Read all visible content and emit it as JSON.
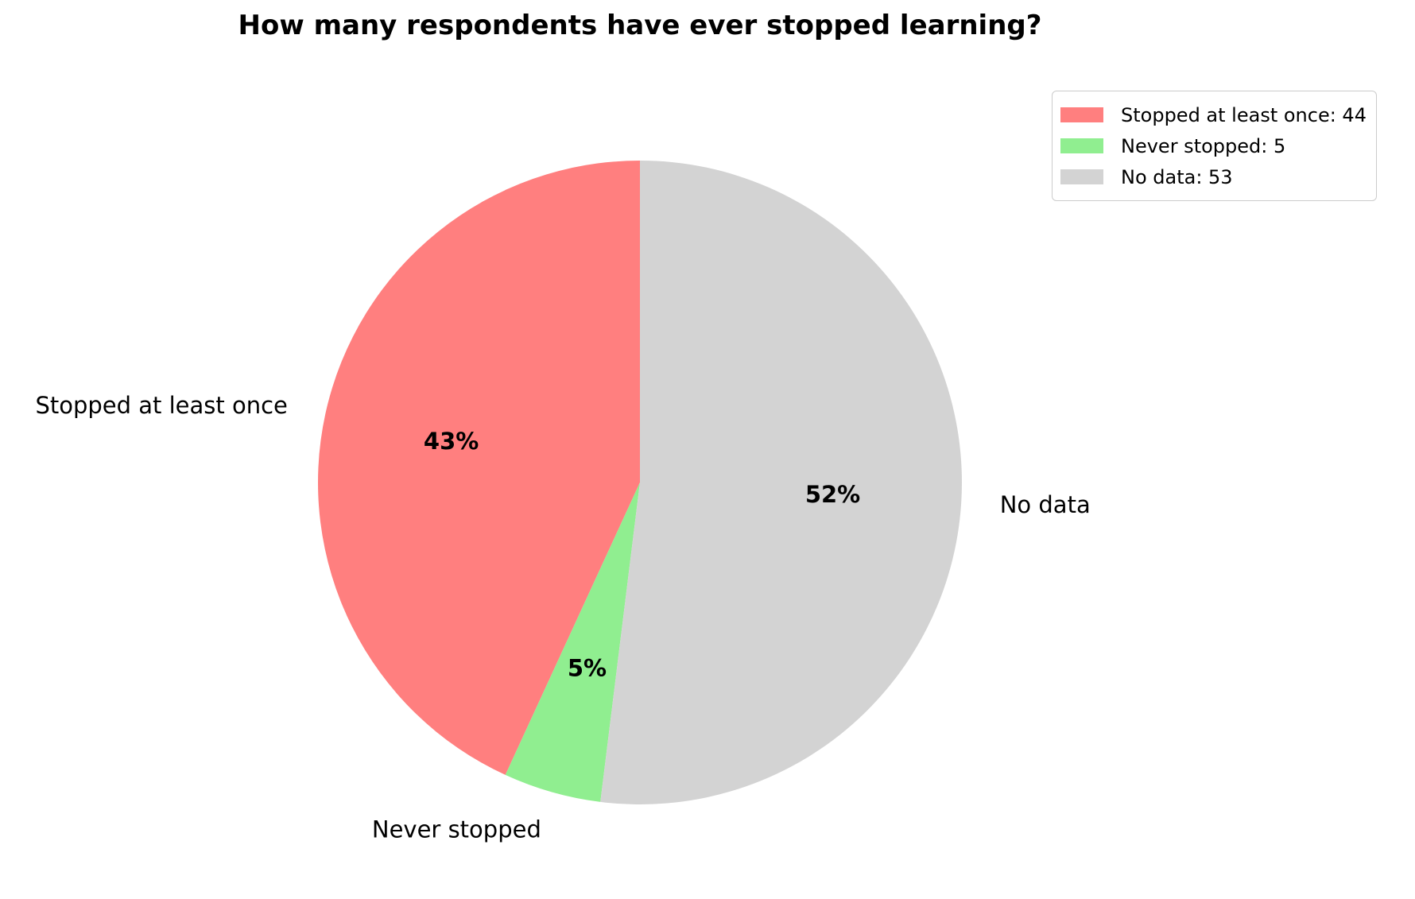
{
  "chart_data": {
    "type": "pie",
    "title": "How many respondents have ever stopped learning?",
    "start_angle_deg": 90,
    "direction": "counterclockwise",
    "slices": [
      {
        "label": "Stopped at least once",
        "value": 44,
        "percent_label": "43%",
        "legend_label": "Stopped at least once: 44",
        "color": "#ff7f7f"
      },
      {
        "label": "Never stopped",
        "value": 5,
        "percent_label": "5%",
        "legend_label": "Never stopped: 5",
        "color": "#90ee90"
      },
      {
        "label": "No data",
        "value": 53,
        "percent_label": "52%",
        "legend_label": "No data: 53",
        "color": "#d3d3d3"
      }
    ],
    "legend_position": "top-right"
  }
}
